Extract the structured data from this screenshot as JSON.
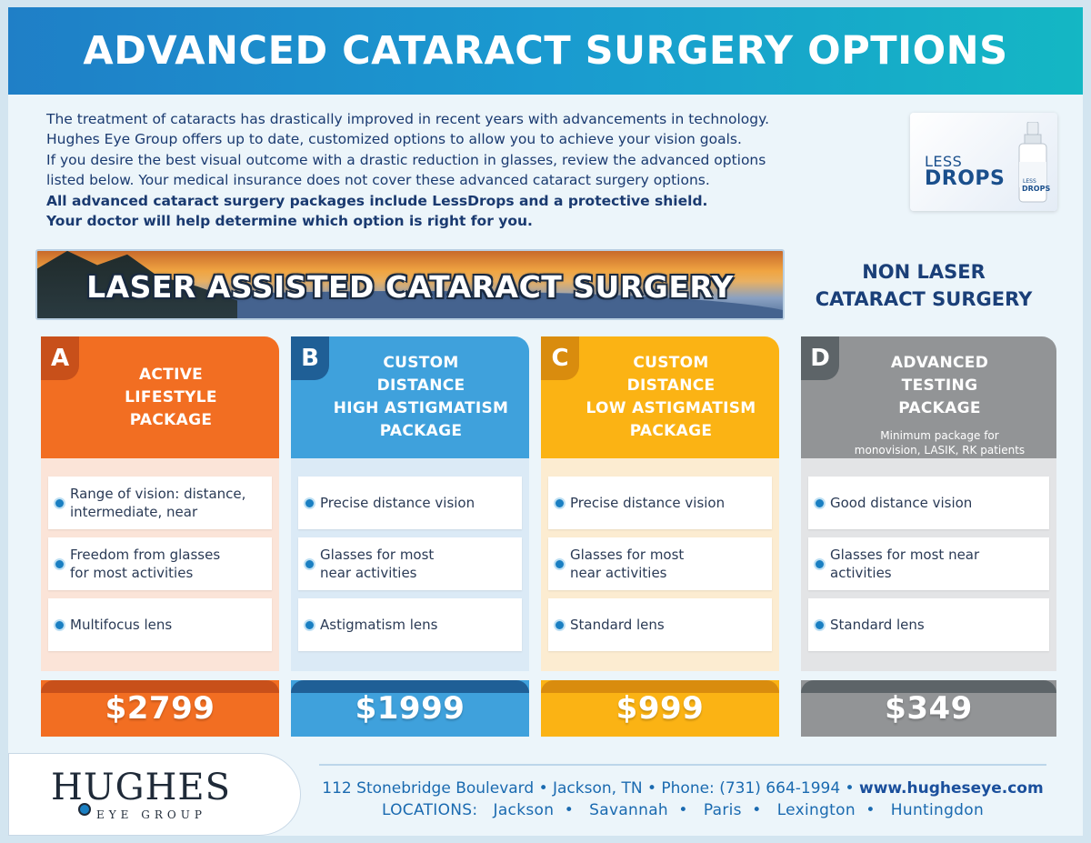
{
  "header": {
    "title": "ADVANCED CATARACT SURGERY OPTIONS"
  },
  "intro": {
    "lines": [
      "The treatment of cataracts has drastically improved in recent years with advancements in technology.",
      "Hughes Eye Group offers up to date, customized options to allow you to achieve your vision goals.",
      "If you desire the best visual outcome with a drastic reduction in glasses, review the advanced options",
      "listed below. Your medical insurance does not cover these advanced cataract surgery options."
    ],
    "bold_lines": [
      "All advanced cataract surgery packages include LessDrops and a protective shield.",
      "Your doctor will help determine which option is right for you."
    ]
  },
  "lessdrops": {
    "less": "LESS",
    "drops": "DROPS",
    "bottle_less": "LESS",
    "bottle_drops": "DROPS"
  },
  "laser_banner": {
    "title": "LASER ASSISTED CATARACT SURGERY"
  },
  "nonlaser": {
    "line1": "NON LASER",
    "line2": "CATARACT SURGERY"
  },
  "packages": [
    {
      "letter": "A",
      "title_lines": [
        "ACTIVE",
        "LIFESTYLE",
        "PACKAGE"
      ],
      "subtitle_lines": [],
      "features": [
        [
          "Range of vision: distance,",
          "intermediate, near"
        ],
        [
          "Freedom from glasses",
          "for most activities"
        ],
        [
          "Multifocus lens"
        ]
      ],
      "price": "$2799",
      "colors": {
        "main": "#f26e22",
        "tab": "#c8501a",
        "body": "#fbe4d8"
      }
    },
    {
      "letter": "B",
      "title_lines": [
        "CUSTOM",
        "DISTANCE",
        "HIGH ASTIGMATISM",
        "PACKAGE"
      ],
      "subtitle_lines": [],
      "features": [
        [
          "Precise distance vision"
        ],
        [
          "Glasses for most",
          "near activities"
        ],
        [
          "Astigmatism lens"
        ]
      ],
      "price": "$1999",
      "colors": {
        "main": "#3fa1dc",
        "tab": "#1f5f96",
        "body": "#dbeaf6"
      }
    },
    {
      "letter": "C",
      "title_lines": [
        "CUSTOM",
        "DISTANCE",
        "LOW ASTIGMATISM",
        "PACKAGE"
      ],
      "subtitle_lines": [],
      "features": [
        [
          "Precise distance vision"
        ],
        [
          "Glasses for most",
          "near activities"
        ],
        [
          "Standard lens"
        ]
      ],
      "price": "$999",
      "colors": {
        "main": "#fbb314",
        "tab": "#d98c0e",
        "body": "#fcecd1"
      }
    },
    {
      "letter": "D",
      "title_lines": [
        "ADVANCED",
        "TESTING",
        "PACKAGE"
      ],
      "subtitle_lines": [
        "Minimum package for",
        "monovision, LASIK, RK patients"
      ],
      "features": [
        [
          "Good distance vision"
        ],
        [
          "Glasses for most near",
          "activities"
        ],
        [
          "Standard lens"
        ]
      ],
      "price": "$349",
      "colors": {
        "main": "#929496",
        "tab": "#5d6468",
        "body": "#e3e4e6"
      }
    }
  ],
  "footer": {
    "logo_word": "HUGHES",
    "logo_sub": "EYE GROUP",
    "address": "112 Stonebridge Boulevard • Jackson, TN • Phone: (731) 664-1994 • ",
    "website": "www.hugheseye.com",
    "locations_label": "LOCATIONS:",
    "locations": [
      "Jackson",
      "Savannah",
      "Paris",
      "Lexington",
      "Huntingdon"
    ]
  }
}
